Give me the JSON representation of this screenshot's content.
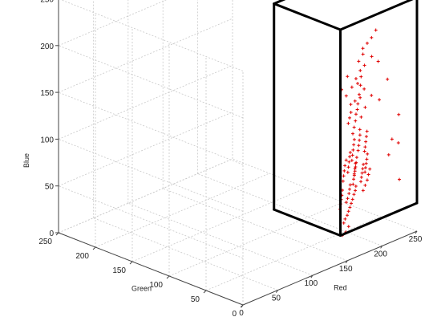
{
  "chart_data": {
    "type": "scatter",
    "subtype": "3d",
    "xlabel": "Red",
    "ylabel": "Green",
    "zlabel": "Blue",
    "xlim": [
      0,
      250
    ],
    "ylim": [
      0,
      250
    ],
    "zlim": [
      0,
      250
    ],
    "x_ticks": [
      "0",
      "50",
      "100",
      "150",
      "200",
      "250"
    ],
    "y_ticks": [
      "0",
      "50",
      "100",
      "150",
      "200",
      "250"
    ],
    "z_ticks": [
      "0",
      "50",
      "100",
      "150",
      "200",
      "250"
    ],
    "grid": true,
    "colors": {
      "points": "#e00000",
      "box": "#000000",
      "grid": "#c8c8c8"
    },
    "bounding_box": {
      "red": [
        140,
        250
      ],
      "green": [
        0,
        90
      ],
      "blue": [
        30,
        250
      ]
    },
    "series": [
      {
        "marker": "point",
        "points": [
          [
            246,
            52,
            200
          ],
          [
            243,
            55,
            192
          ],
          [
            240,
            58,
            186
          ],
          [
            236,
            60,
            175
          ],
          [
            232,
            62,
            168
          ],
          [
            230,
            58,
            160
          ],
          [
            228,
            55,
            155
          ],
          [
            224,
            52,
            148
          ],
          [
            220,
            50,
            140
          ],
          [
            216,
            48,
            132
          ],
          [
            238,
            50,
            175
          ],
          [
            234,
            56,
            165
          ],
          [
            226,
            60,
            152
          ],
          [
            222,
            54,
            150
          ],
          [
            218,
            58,
            146
          ],
          [
            212,
            45,
            128
          ],
          [
            208,
            43,
            125
          ],
          [
            204,
            40,
            120
          ],
          [
            200,
            38,
            115
          ],
          [
            196,
            36,
            110
          ],
          [
            214,
            50,
            135
          ],
          [
            210,
            52,
            132
          ],
          [
            206,
            48,
            126
          ],
          [
            202,
            46,
            122
          ],
          [
            198,
            44,
            118
          ],
          [
            205,
            35,
            112
          ],
          [
            202,
            32,
            108
          ],
          [
            199,
            30,
            104
          ],
          [
            196,
            28,
            100
          ],
          [
            193,
            26,
            96
          ],
          [
            210,
            30,
            110
          ],
          [
            207,
            28,
            106
          ],
          [
            204,
            26,
            102
          ],
          [
            201,
            24,
            98
          ],
          [
            198,
            22,
            95
          ],
          [
            195,
            33,
            105
          ],
          [
            192,
            31,
            101
          ],
          [
            189,
            29,
            97
          ],
          [
            186,
            27,
            93
          ],
          [
            183,
            25,
            89
          ],
          [
            200,
            20,
            92
          ],
          [
            197,
            18,
            88
          ],
          [
            194,
            16,
            85
          ],
          [
            191,
            14,
            82
          ],
          [
            188,
            12,
            79
          ],
          [
            185,
            22,
            86
          ],
          [
            182,
            20,
            82
          ],
          [
            179,
            18,
            78
          ],
          [
            176,
            16,
            74
          ],
          [
            173,
            14,
            70
          ],
          [
            190,
            25,
            90
          ],
          [
            187,
            23,
            86
          ],
          [
            184,
            21,
            83
          ],
          [
            181,
            19,
            80
          ],
          [
            178,
            17,
            77
          ],
          [
            175,
            12,
            68
          ],
          [
            172,
            10,
            65
          ],
          [
            169,
            9,
            62
          ],
          [
            166,
            8,
            58
          ],
          [
            163,
            7,
            55
          ],
          [
            170,
            15,
            70
          ],
          [
            167,
            13,
            67
          ],
          [
            164,
            11,
            64
          ],
          [
            161,
            10,
            60
          ],
          [
            158,
            9,
            57
          ],
          [
            160,
            6,
            52
          ],
          [
            157,
            5,
            49
          ],
          [
            154,
            4,
            46
          ],
          [
            151,
            4,
            43
          ],
          [
            148,
            3,
            40
          ],
          [
            186,
            30,
            95
          ],
          [
            183,
            28,
            92
          ],
          [
            180,
            26,
            88
          ],
          [
            177,
            24,
            84
          ],
          [
            174,
            22,
            80
          ],
          [
            192,
            18,
            84
          ],
          [
            189,
            16,
            81
          ],
          [
            186,
            14,
            78
          ],
          [
            183,
            12,
            75
          ],
          [
            180,
            10,
            72
          ],
          [
            215,
            44,
            140
          ],
          [
            212,
            60,
            138
          ],
          [
            218,
            40,
            130
          ],
          [
            208,
            36,
            124
          ],
          [
            225,
            48,
            145
          ],
          [
            195,
            12,
            80
          ],
          [
            191,
            10,
            76
          ],
          [
            187,
            8,
            72
          ],
          [
            183,
            7,
            68
          ],
          [
            179,
            6,
            64
          ],
          [
            178,
            28,
            90
          ],
          [
            174,
            26,
            86
          ],
          [
            171,
            24,
            82
          ],
          [
            168,
            22,
            78
          ],
          [
            165,
            20,
            74
          ],
          [
            245,
            20,
            120
          ],
          [
            230,
            15,
            100
          ],
          [
            236,
            12,
            95
          ],
          [
            220,
            10,
            88
          ],
          [
            250,
            40,
            150
          ],
          [
            162,
            18,
            66
          ],
          [
            159,
            16,
            62
          ],
          [
            156,
            14,
            59
          ],
          [
            153,
            12,
            56
          ],
          [
            150,
            10,
            52
          ],
          [
            238,
            62,
            180
          ],
          [
            242,
            45,
            170
          ],
          [
            227,
            40,
            140
          ],
          [
            233,
            35,
            135
          ],
          [
            219,
            65,
            155
          ],
          [
            150,
            2,
            30
          ],
          [
            155,
            3,
            34
          ],
          [
            145,
            2,
            28
          ],
          [
            230,
            5,
            60
          ],
          [
            200,
            55,
            150
          ]
        ]
      }
    ]
  }
}
